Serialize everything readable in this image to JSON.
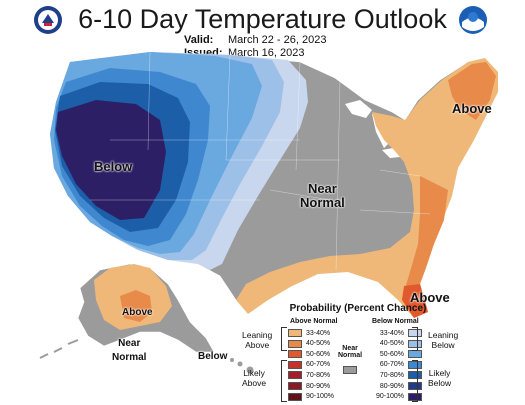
{
  "header": {
    "title": "6-10 Day Temperature Outlook",
    "valid_label": "Valid:",
    "valid_value": "March 22 - 26, 2023",
    "issued_label": "Issued:",
    "issued_value": "March 16, 2023"
  },
  "logos": {
    "left": "doc-seal-icon",
    "right": "noaa-logo-icon"
  },
  "map_labels": {
    "below_west": "Below",
    "near_normal_center": "Near\nNormal",
    "above_ne": "Above",
    "above_fl": "Above",
    "above_ak": "Above",
    "near_normal_ak": "Near\nNormal",
    "below_ak": "Below"
  },
  "legend": {
    "title": "Probability (Percent Chance)",
    "above_header": "Above Normal",
    "below_header": "Below Normal",
    "near_header": "Near\nNormal",
    "leaning_above": "Leaning\nAbove",
    "likely_above": "Likely\nAbove",
    "leaning_below": "Leaning\nBelow",
    "likely_below": "Likely\nBelow",
    "ranges": [
      "33-40%",
      "40-50%",
      "50-60%",
      "60-70%",
      "70-80%",
      "80-90%",
      "90-100%"
    ],
    "above_colors": [
      "#f0b878",
      "#e88a4a",
      "#e05a2e",
      "#c4342a",
      "#a31f2a",
      "#8a1a24",
      "#5e1418"
    ],
    "below_colors": [
      "#c8d6ee",
      "#9dc0e8",
      "#6aa8e0",
      "#3f88d0",
      "#1c5fa8",
      "#233a86",
      "#2d1f66"
    ],
    "near_color": "#9b9b9b"
  }
}
